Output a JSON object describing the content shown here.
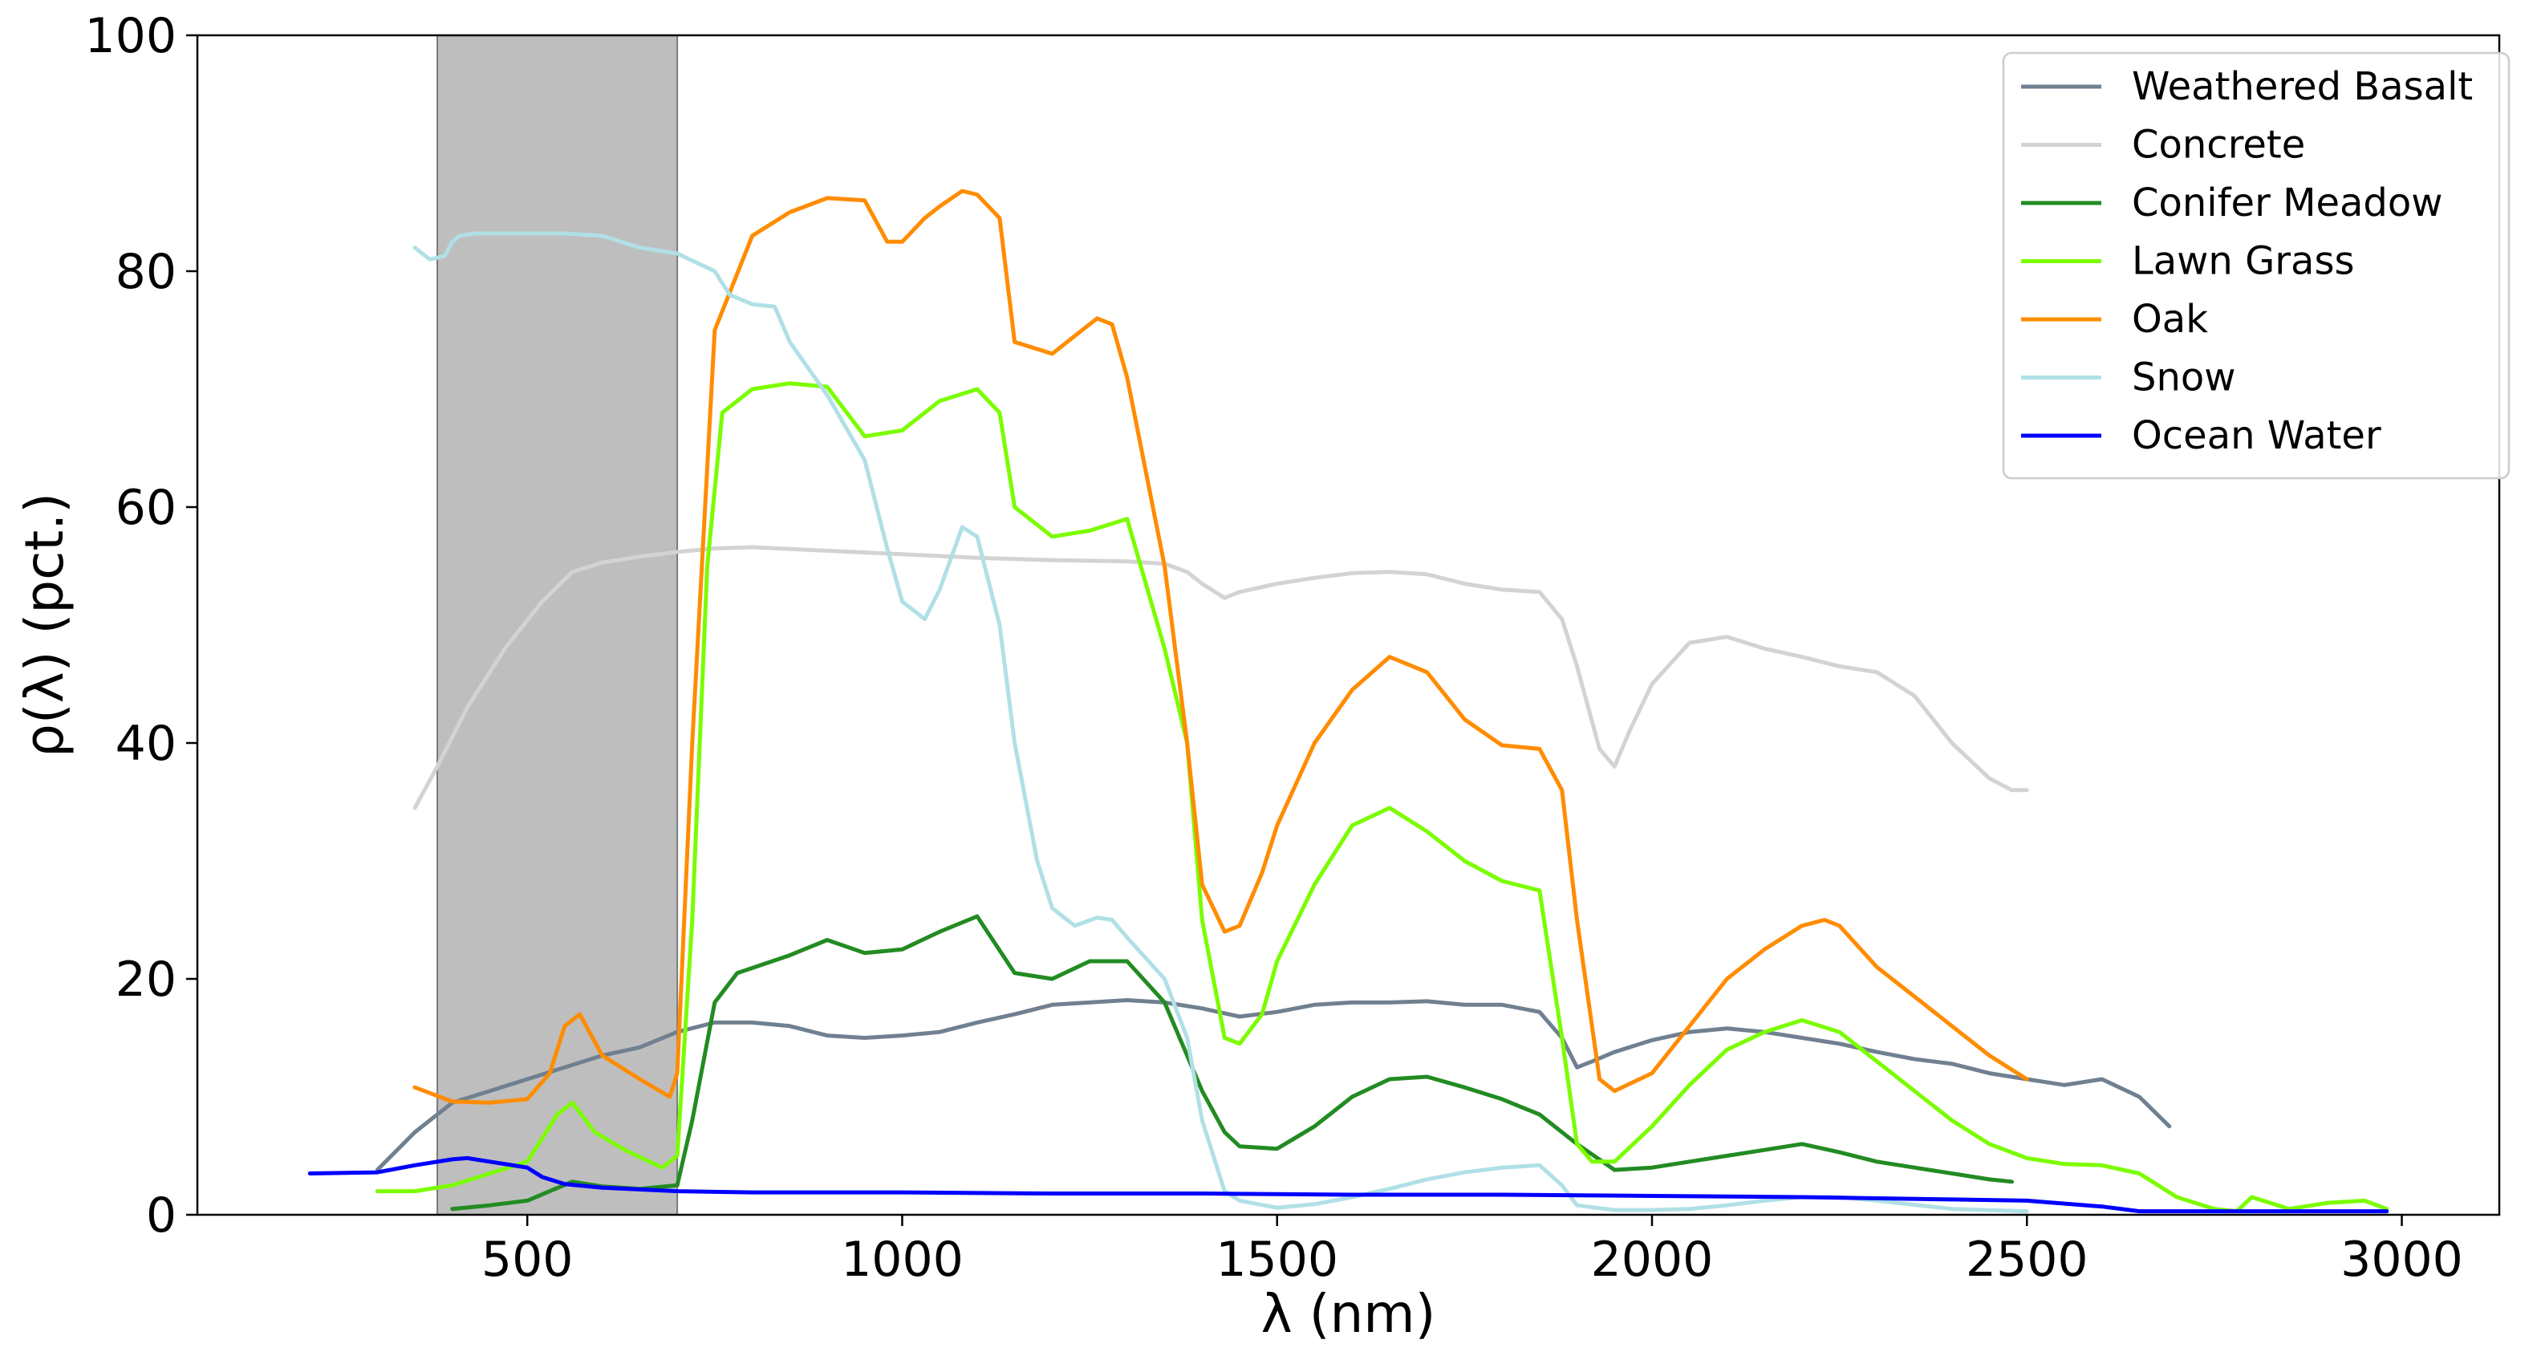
{
  "chart_data": {
    "type": "line",
    "title": "",
    "xlabel": "λ (nm)",
    "ylabel": "ρ(λ) (pct.)",
    "xlim": [
      60,
      3130
    ],
    "ylim": [
      0,
      100
    ],
    "xticks": [
      500,
      1000,
      1500,
      2000,
      2500,
      3000
    ],
    "yticks": [
      0,
      20,
      40,
      60,
      80,
      100
    ],
    "grid": false,
    "legend_position": "top-right",
    "shaded_band": {
      "x_start": 380,
      "x_end": 700,
      "color": "#bebebe"
    },
    "series": [
      {
        "name": "Weathered Basalt",
        "color": "#708090",
        "x": [
          300,
          350,
          400,
          450,
          500,
          550,
          600,
          650,
          700,
          750,
          800,
          850,
          900,
          950,
          1000,
          1050,
          1100,
          1150,
          1200,
          1250,
          1300,
          1350,
          1400,
          1450,
          1500,
          1550,
          1600,
          1650,
          1700,
          1750,
          1800,
          1850,
          1880,
          1900,
          1920,
          1950,
          2000,
          2050,
          2100,
          2150,
          2200,
          2250,
          2300,
          2350,
          2400,
          2450,
          2500,
          2550,
          2600,
          2650,
          2690
        ],
        "y": [
          3.8,
          7.0,
          9.5,
          10.5,
          11.5,
          12.5,
          13.5,
          14.2,
          15.5,
          16.3,
          16.3,
          16.0,
          15.2,
          15.0,
          15.2,
          15.5,
          16.3,
          17.0,
          17.8,
          18.0,
          18.2,
          18.0,
          17.5,
          16.8,
          17.2,
          17.8,
          18.0,
          18.0,
          18.1,
          17.8,
          17.8,
          17.2,
          15.0,
          12.5,
          13.0,
          13.8,
          14.8,
          15.5,
          15.8,
          15.5,
          15.0,
          14.5,
          13.8,
          13.2,
          12.8,
          12.0,
          11.5,
          11.0,
          11.5,
          10.0,
          7.5
        ]
      },
      {
        "name": "Concrete",
        "color": "#d3d3d3",
        "x": [
          350,
          380,
          420,
          470,
          520,
          560,
          600,
          650,
          700,
          750,
          800,
          900,
          1000,
          1100,
          1200,
          1300,
          1350,
          1380,
          1400,
          1430,
          1450,
          1500,
          1550,
          1600,
          1650,
          1700,
          1750,
          1800,
          1850,
          1880,
          1900,
          1930,
          1950,
          1970,
          2000,
          2050,
          2100,
          2150,
          2200,
          2250,
          2300,
          2350,
          2400,
          2450,
          2480,
          2500
        ],
        "y": [
          34.5,
          38,
          43,
          48,
          52,
          54.5,
          55.3,
          55.8,
          56.2,
          56.5,
          56.6,
          56.3,
          56.0,
          55.7,
          55.5,
          55.4,
          55.2,
          54.5,
          53.5,
          52.3,
          52.8,
          53.5,
          54.0,
          54.4,
          54.5,
          54.3,
          53.5,
          53.0,
          52.8,
          50.5,
          46.5,
          39.5,
          38.0,
          41.0,
          45.0,
          48.5,
          49.0,
          48.0,
          47.3,
          46.5,
          46.0,
          44.0,
          40.0,
          37.0,
          36.0,
          36.0
        ]
      },
      {
        "name": "Conifer Meadow",
        "color": "#228b22",
        "x": [
          400,
          450,
          500,
          530,
          560,
          600,
          650,
          700,
          720,
          750,
          780,
          850,
          900,
          950,
          1000,
          1050,
          1100,
          1150,
          1200,
          1250,
          1300,
          1350,
          1400,
          1430,
          1450,
          1500,
          1550,
          1600,
          1650,
          1700,
          1750,
          1800,
          1850,
          1900,
          1950,
          2000,
          2050,
          2100,
          2150,
          2200,
          2250,
          2300,
          2350,
          2400,
          2450,
          2480
        ],
        "y": [
          0.5,
          0.8,
          1.2,
          2.0,
          2.8,
          2.4,
          2.2,
          2.5,
          8.0,
          18.0,
          20.5,
          22.0,
          23.3,
          22.2,
          22.5,
          24.0,
          25.3,
          20.5,
          20.0,
          21.5,
          21.5,
          18.0,
          10.5,
          7.0,
          5.8,
          5.6,
          7.5,
          10.0,
          11.5,
          11.7,
          10.8,
          9.8,
          8.5,
          6.0,
          3.8,
          4.0,
          4.5,
          5.0,
          5.5,
          6.0,
          5.3,
          4.5,
          4.0,
          3.5,
          3.0,
          2.8
        ]
      },
      {
        "name": "Lawn Grass",
        "color": "#7cfc00",
        "x": [
          300,
          350,
          400,
          450,
          500,
          540,
          560,
          590,
          630,
          680,
          700,
          720,
          740,
          760,
          800,
          850,
          900,
          950,
          1000,
          1050,
          1100,
          1130,
          1150,
          1200,
          1250,
          1300,
          1350,
          1380,
          1400,
          1430,
          1450,
          1480,
          1500,
          1550,
          1600,
          1650,
          1700,
          1750,
          1800,
          1850,
          1880,
          1900,
          1920,
          1950,
          2000,
          2050,
          2100,
          2150,
          2200,
          2250,
          2300,
          2350,
          2400,
          2450,
          2500,
          2550,
          2600,
          2650,
          2700,
          2750,
          2780,
          2800,
          2850,
          2900,
          2950,
          2980
        ],
        "y": [
          2.0,
          2.0,
          2.5,
          3.5,
          4.5,
          8.5,
          9.5,
          7.0,
          5.5,
          4.0,
          5.0,
          25.0,
          55.0,
          68.0,
          70.0,
          70.5,
          70.2,
          66.0,
          66.5,
          69.0,
          70.0,
          68.0,
          60.0,
          57.5,
          58.0,
          59.0,
          48.0,
          40.0,
          25.0,
          15.0,
          14.5,
          17.0,
          21.5,
          28.0,
          33.0,
          34.5,
          32.5,
          30.0,
          28.3,
          27.5,
          15.0,
          6.0,
          4.5,
          4.5,
          7.5,
          11.0,
          14.0,
          15.5,
          16.5,
          15.5,
          13.0,
          10.5,
          8.0,
          6.0,
          4.8,
          4.3,
          4.2,
          3.5,
          1.5,
          0.5,
          0.3,
          1.5,
          0.5,
          1.0,
          1.2,
          0.5
        ]
      },
      {
        "name": "Oak",
        "color": "#ff8c00",
        "x": [
          350,
          400,
          450,
          500,
          530,
          550,
          570,
          600,
          650,
          690,
          700,
          720,
          750,
          800,
          850,
          900,
          950,
          980,
          1000,
          1030,
          1050,
          1080,
          1100,
          1130,
          1150,
          1200,
          1230,
          1260,
          1280,
          1300,
          1350,
          1380,
          1400,
          1430,
          1450,
          1480,
          1500,
          1550,
          1600,
          1650,
          1700,
          1750,
          1800,
          1850,
          1880,
          1900,
          1930,
          1950,
          2000,
          2050,
          2100,
          2150,
          2200,
          2230,
          2250,
          2300,
          2350,
          2400,
          2450,
          2500
        ],
        "y": [
          10.8,
          9.6,
          9.5,
          9.8,
          12.0,
          16.0,
          17.0,
          13.5,
          11.5,
          10.0,
          12.0,
          40.0,
          75.0,
          83.0,
          85.0,
          86.2,
          86.0,
          82.5,
          82.5,
          84.5,
          85.5,
          86.8,
          86.5,
          84.5,
          74.0,
          73.0,
          74.5,
          76.0,
          75.5,
          71.0,
          55.0,
          40.0,
          28.0,
          24.0,
          24.5,
          29.0,
          33.0,
          40.0,
          44.5,
          47.3,
          46.0,
          42.0,
          39.8,
          39.5,
          36.0,
          25.0,
          11.5,
          10.5,
          12.0,
          16.0,
          20.0,
          22.5,
          24.5,
          25.0,
          24.5,
          21.0,
          18.5,
          16.0,
          13.5,
          11.5
        ]
      },
      {
        "name": "Snow",
        "color": "#b0e0e6",
        "x": [
          350,
          360,
          370,
          390,
          400,
          410,
          430,
          450,
          500,
          550,
          600,
          650,
          700,
          750,
          770,
          800,
          830,
          850,
          900,
          950,
          980,
          1000,
          1030,
          1050,
          1080,
          1100,
          1130,
          1150,
          1180,
          1200,
          1230,
          1260,
          1280,
          1300,
          1350,
          1380,
          1400,
          1430,
          1450,
          1500,
          1550,
          1600,
          1650,
          1700,
          1750,
          1800,
          1850,
          1880,
          1900,
          1950,
          2000,
          2050,
          2100,
          2150,
          2200,
          2250,
          2300,
          2400,
          2500
        ],
        "y": [
          82.0,
          81.5,
          81.0,
          81.3,
          82.5,
          83.0,
          83.2,
          83.2,
          83.2,
          83.2,
          83.0,
          82.0,
          81.5,
          80.0,
          78.0,
          77.2,
          77.0,
          74.0,
          69.5,
          64.0,
          56.5,
          52.0,
          50.5,
          53.0,
          58.3,
          57.5,
          50.0,
          40.0,
          30.0,
          26.0,
          24.5,
          25.2,
          25.0,
          23.5,
          20.0,
          15.0,
          8.0,
          2.0,
          1.2,
          0.6,
          0.9,
          1.5,
          2.2,
          3.0,
          3.6,
          4.0,
          4.2,
          2.5,
          0.8,
          0.4,
          0.4,
          0.5,
          0.8,
          1.2,
          1.5,
          1.5,
          1.2,
          0.5,
          0.3
        ]
      },
      {
        "name": "Ocean Water",
        "color": "#0000ff",
        "x": [
          210,
          300,
          350,
          400,
          420,
          450,
          500,
          520,
          550,
          600,
          700,
          800,
          900,
          1000,
          1200,
          1400,
          1600,
          1800,
          2000,
          2200,
          2400,
          2500,
          2600,
          2650,
          2700,
          2800,
          2900,
          2980
        ],
        "y": [
          3.5,
          3.6,
          4.2,
          4.7,
          4.8,
          4.5,
          4.0,
          3.2,
          2.6,
          2.3,
          2.0,
          1.9,
          1.9,
          1.9,
          1.8,
          1.8,
          1.7,
          1.7,
          1.6,
          1.5,
          1.3,
          1.2,
          0.7,
          0.3,
          0.3,
          0.3,
          0.3,
          0.3
        ]
      }
    ]
  }
}
